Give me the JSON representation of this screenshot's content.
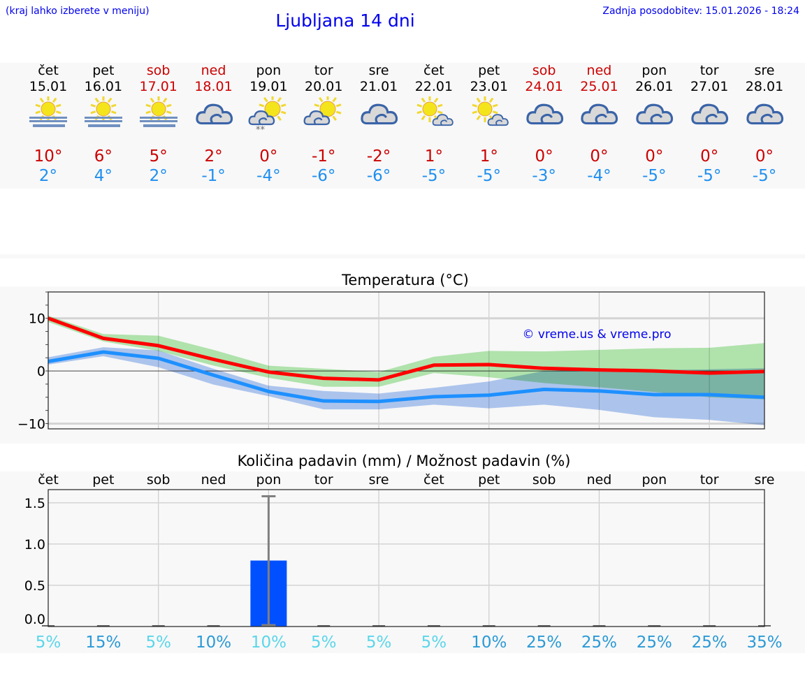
{
  "header": {
    "hint": "(kraj lahko izberete v meniju)",
    "title": "Ljubljana 14 dni",
    "updated": "Zadnja posodobitev: 15.01.2026 - 18:24"
  },
  "days": [
    {
      "name": "čet",
      "date": "15.01",
      "weekend": false,
      "icon": "sun-fog",
      "max": "10°",
      "min": "2°"
    },
    {
      "name": "pet",
      "date": "16.01",
      "weekend": false,
      "icon": "sun-fog",
      "max": "6°",
      "min": "4°"
    },
    {
      "name": "sob",
      "date": "17.01",
      "weekend": true,
      "icon": "sun-fog",
      "max": "5°",
      "min": "2°"
    },
    {
      "name": "ned",
      "date": "18.01",
      "weekend": true,
      "icon": "cloudy",
      "max": "2°",
      "min": "-1°"
    },
    {
      "name": "pon",
      "date": "19.01",
      "weekend": false,
      "icon": "partly-cloudy-snow",
      "max": "0°",
      "min": "-4°"
    },
    {
      "name": "tor",
      "date": "20.01",
      "weekend": false,
      "icon": "partly-cloudy",
      "max": "-1°",
      "min": "-6°"
    },
    {
      "name": "sre",
      "date": "21.01",
      "weekend": false,
      "icon": "cloudy",
      "max": "-2°",
      "min": "-6°"
    },
    {
      "name": "čet",
      "date": "22.01",
      "weekend": false,
      "icon": "sun-small-cloud",
      "max": "1°",
      "min": "-5°"
    },
    {
      "name": "pet",
      "date": "23.01",
      "weekend": false,
      "icon": "sun-small-cloud",
      "max": "1°",
      "min": "-5°"
    },
    {
      "name": "sob",
      "date": "24.01",
      "weekend": true,
      "icon": "cloudy",
      "max": "0°",
      "min": "-3°"
    },
    {
      "name": "ned",
      "date": "25.01",
      "weekend": true,
      "icon": "cloudy",
      "max": "0°",
      "min": "-4°"
    },
    {
      "name": "pon",
      "date": "26.01",
      "weekend": false,
      "icon": "cloudy",
      "max": "0°",
      "min": "-5°"
    },
    {
      "name": "tor",
      "date": "27.01",
      "weekend": false,
      "icon": "cloudy",
      "max": "0°",
      "min": "-5°"
    },
    {
      "name": "sre",
      "date": "28.01",
      "weekend": false,
      "icon": "cloudy",
      "max": "0°",
      "min": "-5°"
    }
  ],
  "colors": {
    "weekend": "#cc0000",
    "max": "#ff0000",
    "min": "#1e90ff",
    "max_band": "#a8e6a3",
    "min_band": "#a9c4f2",
    "bar": "#0050ff",
    "error": "#808080",
    "pct_low": "#5ad6ea",
    "pct_high": "#2b9ad6"
  },
  "chart_data": [
    {
      "type": "line",
      "title": "Temperatura (°C)",
      "ylim": [
        -11,
        15
      ],
      "yticks": [
        "10",
        "0",
        "−10"
      ],
      "ytick_values": [
        10,
        0,
        -10
      ],
      "grid": true,
      "watermark": "© vreme.us & vreme.pro",
      "x": [
        "15.01",
        "16.01",
        "17.01",
        "18.01",
        "19.01",
        "20.01",
        "21.01",
        "22.01",
        "23.01",
        "24.01",
        "25.01",
        "26.01",
        "27.01",
        "28.01"
      ],
      "series": [
        {
          "role": "max",
          "values": [
            10,
            6.2,
            4.8,
            2.2,
            -0.2,
            -1.4,
            -1.7,
            1.1,
            1.2,
            0.5,
            0.2,
            0,
            -0.4,
            -0.1
          ],
          "band_upper": [
            10.5,
            7,
            6.7,
            4,
            1,
            0.4,
            -0.2,
            2.7,
            3.8,
            3.7,
            4,
            4.3,
            4.4,
            5.3
          ],
          "band_lower": [
            9.3,
            5.6,
            3.8,
            1,
            -1.3,
            -3,
            -3,
            -0.4,
            -1.2,
            -2.3,
            -3.1,
            -4,
            -5,
            -5.4
          ]
        },
        {
          "role": "min",
          "values": [
            1.8,
            3.6,
            2.4,
            -0.8,
            -3.9,
            -5.7,
            -5.8,
            -4.9,
            -4.6,
            -3.5,
            -3.8,
            -4.5,
            -4.5,
            -5
          ],
          "band_upper": [
            2.6,
            4.5,
            3.9,
            0.4,
            -2.8,
            -3.8,
            -4.3,
            -3.2,
            -2,
            0,
            0.1,
            0.2,
            0.3,
            0.5
          ],
          "band_lower": [
            1.2,
            2.8,
            0.7,
            -2.6,
            -4.8,
            -7.3,
            -7.3,
            -6.4,
            -7.1,
            -6.4,
            -7.4,
            -8.8,
            -9.3,
            -10.3
          ]
        }
      ]
    },
    {
      "type": "bar",
      "title": "Količina padavin (mm) / Možnost padavin (%)",
      "categories": [
        "čet",
        "pet",
        "sob",
        "ned",
        "pon",
        "tor",
        "sre",
        "čet",
        "pet",
        "sob",
        "ned",
        "pon",
        "tor",
        "sre"
      ],
      "values": [
        0,
        0,
        0,
        0,
        0.8,
        0,
        0,
        0,
        0,
        0,
        0,
        0,
        0,
        0
      ],
      "error_upper": [
        0,
        0,
        0,
        0,
        1.58,
        0,
        0,
        0,
        0,
        0,
        0,
        0,
        0,
        0
      ],
      "error_lower": [
        0,
        0,
        0,
        0,
        0,
        0,
        0,
        0,
        0,
        0,
        0,
        0,
        0,
        0
      ],
      "ylim": [
        0,
        1.66
      ],
      "yticks": [
        "0.0",
        "0.5",
        "1.0",
        "1.5"
      ],
      "ytick_values": [
        0,
        0.5,
        1,
        1.5
      ],
      "grid": true,
      "probability": [
        "5%",
        "15%",
        "5%",
        "10%",
        "10%",
        "5%",
        "5%",
        "5%",
        "10%",
        "25%",
        "25%",
        "25%",
        "25%",
        "35%"
      ],
      "probability_level": [
        "low",
        "high",
        "low",
        "high",
        "low",
        "low",
        "low",
        "low",
        "high",
        "high",
        "high",
        "high",
        "high",
        "high"
      ]
    }
  ]
}
